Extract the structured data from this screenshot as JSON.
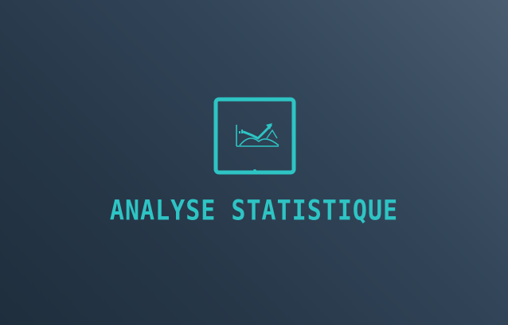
{
  "logo": {
    "icon": "tablet-chart-icon",
    "accent_color": "#2ec4c4",
    "background_color": "#2a3b4c"
  },
  "title": "ANALYSE STATISTIQUE"
}
